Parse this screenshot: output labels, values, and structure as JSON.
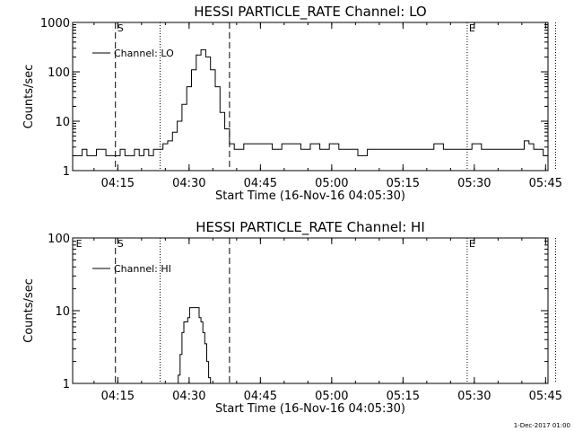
{
  "chart_data": [
    {
      "type": "line",
      "title": "HESSI PARTICLE_RATE Channel: LO",
      "xlabel": "Start Time (16-Nov-16 04:05:30)",
      "ylabel": "Counts/sec",
      "x_unit": "minutes since 04:05:30",
      "xlim": [
        0,
        100
      ],
      "ylim": [
        1,
        1000
      ],
      "y_scale": "log",
      "x_tick_values": [
        9.5,
        24.5,
        39.5,
        54.5,
        69.5,
        84.5,
        99.5
      ],
      "x_tick_labels": [
        "04:15",
        "04:30",
        "04:45",
        "05:00",
        "05:15",
        "05:30",
        "05:45"
      ],
      "y_tick_values": [
        1,
        10,
        100,
        1000
      ],
      "y_tick_labels": [
        "1",
        "10",
        "100",
        "1000"
      ],
      "legend": "top-left",
      "vlines": [
        {
          "x": 9.0,
          "style": "dashed",
          "label": "S"
        },
        {
          "x": 18.4,
          "style": "dotted",
          "label": ""
        },
        {
          "x": 33.0,
          "style": "dashed",
          "label": ""
        },
        {
          "x": 83.0,
          "style": "dotted",
          "label": "E"
        },
        {
          "x": 101.6,
          "style": "dotted",
          "label": ""
        }
      ],
      "series": [
        {
          "name": "Channel: LO",
          "color": "#000000",
          "x": [
            0,
            2,
            3,
            4,
            5,
            7,
            8,
            10,
            11,
            12,
            13,
            14,
            15,
            16,
            17,
            18,
            19,
            20,
            21,
            22,
            23,
            24,
            25,
            26,
            27,
            28,
            29,
            30,
            31,
            32,
            33,
            34,
            36,
            38,
            40,
            42,
            44,
            46,
            48,
            50,
            52,
            54,
            56,
            58,
            60,
            62,
            64,
            66,
            68,
            70,
            72,
            74,
            76,
            78,
            80,
            82,
            84,
            86,
            88,
            90,
            92,
            94,
            95,
            96,
            97,
            98,
            99,
            100
          ],
          "y": [
            2,
            2.7,
            2,
            2,
            2.7,
            2,
            2,
            2.7,
            2,
            2,
            2.7,
            2,
            2.7,
            2,
            2.7,
            2.7,
            3.5,
            4,
            6,
            10,
            22,
            50,
            110,
            220,
            280,
            200,
            110,
            50,
            15,
            7,
            3.5,
            2.7,
            3.5,
            3.5,
            3.5,
            2.7,
            3.5,
            3.5,
            2.7,
            3.5,
            2.7,
            3.5,
            2.7,
            2.7,
            2,
            2.7,
            2.7,
            2.7,
            2.7,
            2.7,
            2.7,
            2.7,
            3.5,
            2.7,
            2.7,
            2.7,
            3.5,
            2.7,
            2.7,
            2.7,
            2.7,
            2.7,
            4,
            3.5,
            2.7,
            2.7,
            2,
            2.7
          ]
        }
      ]
    },
    {
      "type": "line",
      "title": "HESSI PARTICLE_RATE Channel: HI",
      "xlabel": "Start Time (16-Nov-16 04:05:30)",
      "ylabel": "Counts/sec",
      "x_unit": "minutes since 04:05:30",
      "xlim": [
        0,
        100
      ],
      "ylim": [
        1,
        100
      ],
      "y_scale": "log",
      "x_tick_values": [
        9.5,
        24.5,
        39.5,
        54.5,
        69.5,
        84.5,
        99.5
      ],
      "x_tick_labels": [
        "04:15",
        "04:30",
        "04:45",
        "05:00",
        "05:15",
        "05:30",
        "05:45"
      ],
      "y_tick_values": [
        1,
        10,
        100
      ],
      "y_tick_labels": [
        "1",
        "10",
        "100"
      ],
      "legend": "top-left",
      "vlines": [
        {
          "x": 0.3,
          "style": "none",
          "label": "E"
        },
        {
          "x": 9.0,
          "style": "dashed",
          "label": "S"
        },
        {
          "x": 18.4,
          "style": "dotted",
          "label": ""
        },
        {
          "x": 33.0,
          "style": "dashed",
          "label": ""
        },
        {
          "x": 83.0,
          "style": "dotted",
          "label": "E"
        },
        {
          "x": 101.6,
          "style": "dotted",
          "label": ""
        }
      ],
      "series": [
        {
          "name": "Channel: HI",
          "color": "#000000",
          "x": [
            21.8,
            22.2,
            22.6,
            23.0,
            23.4,
            23.8,
            24.2,
            24.6,
            25.0,
            25.4,
            25.8,
            26.2,
            26.6,
            27.0,
            27.4,
            27.8,
            28.2,
            28.6,
            29.0
          ],
          "y": [
            0.9,
            1.3,
            2.5,
            5,
            7,
            7,
            8,
            11,
            11,
            11,
            11,
            11,
            8,
            7,
            5,
            3.5,
            2,
            1.2,
            0.9
          ]
        }
      ]
    }
  ],
  "footer": "1-Dec-2017 01:00"
}
